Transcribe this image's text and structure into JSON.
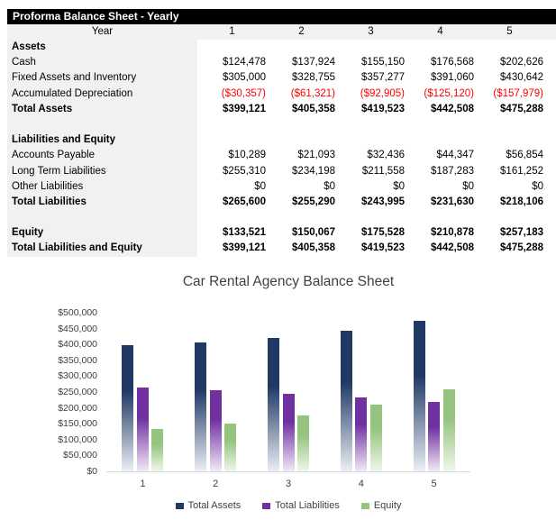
{
  "table": {
    "header_title": "Proforma Balance Sheet - Yearly",
    "year_label": "Year",
    "year_columns": [
      "1",
      "2",
      "3",
      "4",
      "5"
    ],
    "rows": [
      {
        "label": "Assets",
        "bold": true,
        "values": [
          "",
          "",
          "",
          "",
          ""
        ]
      },
      {
        "label": "Cash",
        "values": [
          "$124,478",
          "$137,924",
          "$155,150",
          "$176,568",
          "$202,626"
        ]
      },
      {
        "label": "Fixed Assets and Inventory",
        "values": [
          "$305,000",
          "$328,755",
          "$357,277",
          "$391,060",
          "$430,642"
        ]
      },
      {
        "label": "Accumulated Depreciation",
        "red": true,
        "values": [
          "($30,357)",
          "($61,321)",
          "($92,905)",
          "($125,120)",
          "($157,979)"
        ]
      },
      {
        "label": "Total Assets",
        "bold": true,
        "values": [
          "$399,121",
          "$405,358",
          "$419,523",
          "$442,508",
          "$475,288"
        ]
      },
      {
        "blank": true
      },
      {
        "label": "Liabilities and Equity",
        "bold": true,
        "values": [
          "",
          "",
          "",
          "",
          ""
        ]
      },
      {
        "label": "Accounts Payable",
        "values": [
          "$10,289",
          "$21,093",
          "$32,436",
          "$44,347",
          "$56,854"
        ]
      },
      {
        "label": "Long Term Liabilities",
        "values": [
          "$255,310",
          "$234,198",
          "$211,558",
          "$187,283",
          "$161,252"
        ]
      },
      {
        "label": "Other Liabilities",
        "values": [
          "$0",
          "$0",
          "$0",
          "$0",
          "$0"
        ]
      },
      {
        "label": "Total Liabilities",
        "bold": true,
        "values": [
          "$265,600",
          "$255,290",
          "$243,995",
          "$231,630",
          "$218,106"
        ]
      },
      {
        "blank": true
      },
      {
        "label": "Equity",
        "bold": true,
        "values": [
          "$133,521",
          "$150,067",
          "$175,528",
          "$210,878",
          "$257,183"
        ]
      },
      {
        "label": "Total Liabilities and Equity",
        "bold": true,
        "values": [
          "$399,121",
          "$405,358",
          "$419,523",
          "$442,508",
          "$475,288"
        ]
      }
    ]
  },
  "chart_data": {
    "type": "bar",
    "title": "Car Rental Agency Balance Sheet",
    "categories": [
      "1",
      "2",
      "3",
      "4",
      "5"
    ],
    "series": [
      {
        "name": "Total Assets",
        "color": "#1F3864",
        "color_light": "#ECEFF5",
        "values": [
          399121,
          405358,
          419523,
          442508,
          475288
        ]
      },
      {
        "name": "Total Liabilities",
        "color": "#7030A0",
        "color_light": "#F1EAF7",
        "values": [
          265600,
          255290,
          243995,
          231630,
          218106
        ]
      },
      {
        "name": "Equity",
        "color": "#94C47E",
        "color_light": "#F0F7EA",
        "values": [
          133521,
          150067,
          175528,
          210878,
          257183
        ]
      }
    ],
    "y_ticks": [
      "$500,000",
      "$450,000",
      "$400,000",
      "$350,000",
      "$300,000",
      "$250,000",
      "$200,000",
      "$150,000",
      "$100,000",
      "$50,000",
      "$0"
    ],
    "ylim": [
      0,
      500000
    ],
    "grid": false,
    "legend_position": "bottom"
  },
  "colors": {
    "title_bar_bg": "#000000",
    "title_bar_text": "#FFFFFF",
    "label_column_bg": "#F1F1F1",
    "year_row_bg": "#F2F2F2",
    "negative_text": "#FF0000",
    "axis_line": "#D9D9D9",
    "chart_text": "#404040"
  }
}
